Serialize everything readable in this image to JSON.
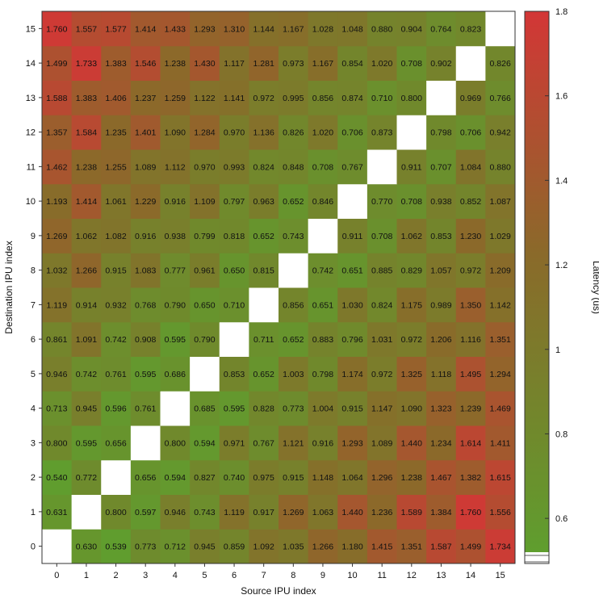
{
  "chart_data": {
    "type": "heatmap",
    "xlabel": "Source IPU index",
    "ylabel": "Destination IPU index",
    "x": [
      0,
      1,
      2,
      3,
      4,
      5,
      6,
      7,
      8,
      9,
      10,
      11,
      12,
      13,
      14,
      15
    ],
    "y": [
      0,
      1,
      2,
      3,
      4,
      5,
      6,
      7,
      8,
      9,
      10,
      11,
      12,
      13,
      14,
      15
    ],
    "colorbar": {
      "label": "Latency (us)",
      "range": [
        0.52,
        1.8
      ],
      "ticks": [
        "0.6",
        "0.8",
        "1",
        "1.2",
        "1.4",
        "1.6",
        "1.8"
      ],
      "tick_values": [
        0.6,
        0.8,
        1.0,
        1.2,
        1.4,
        1.6,
        1.8
      ],
      "low_color": "#5f9e2e",
      "mid_color": "#8a6a2a",
      "high_color": "#d33636",
      "diagonal_color": "#ffffff"
    },
    "values": [
      [
        null,
        "0.630",
        "0.539",
        "0.773",
        "0.712",
        "0.945",
        "0.859",
        "1.092",
        "1.035",
        "1.266",
        "1.180",
        "1.415",
        "1.351",
        "1.587",
        "1.499",
        "1.734"
      ],
      [
        "0.631",
        null,
        "0.800",
        "0.597",
        "0.946",
        "0.743",
        "1.119",
        "0.917",
        "1.269",
        "1.063",
        "1.440",
        "1.236",
        "1.589",
        "1.384",
        "1.760",
        "1.556"
      ],
      [
        "0.540",
        "0.772",
        null,
        "0.656",
        "0.594",
        "0.827",
        "0.740",
        "0.975",
        "0.915",
        "1.148",
        "1.064",
        "1.296",
        "1.238",
        "1.467",
        "1.382",
        "1.615"
      ],
      [
        "0.800",
        "0.595",
        "0.656",
        null,
        "0.800",
        "0.594",
        "0.971",
        "0.767",
        "1.121",
        "0.916",
        "1.293",
        "1.089",
        "1.440",
        "1.234",
        "1.614",
        "1.411"
      ],
      [
        "0.713",
        "0.945",
        "0.596",
        "0.761",
        null,
        "0.685",
        "0.595",
        "0.828",
        "0.773",
        "1.004",
        "0.915",
        "1.147",
        "1.090",
        "1.323",
        "1.239",
        "1.469"
      ],
      [
        "0.946",
        "0.742",
        "0.761",
        "0.595",
        "0.686",
        null,
        "0.853",
        "0.652",
        "1.003",
        "0.798",
        "1.174",
        "0.972",
        "1.325",
        "1.118",
        "1.495",
        "1.294"
      ],
      [
        "0.861",
        "1.091",
        "0.742",
        "0.908",
        "0.595",
        "0.790",
        null,
        "0.711",
        "0.652",
        "0.883",
        "0.796",
        "1.031",
        "0.972",
        "1.206",
        "1.116",
        "1.351"
      ],
      [
        "1.119",
        "0.914",
        "0.932",
        "0.768",
        "0.790",
        "0.650",
        "0.710",
        null,
        "0.856",
        "0.651",
        "1.030",
        "0.824",
        "1.175",
        "0.989",
        "1.350",
        "1.142"
      ],
      [
        "1.032",
        "1.266",
        "0.915",
        "1.083",
        "0.777",
        "0.961",
        "0.650",
        "0.815",
        null,
        "0.742",
        "0.651",
        "0.885",
        "0.829",
        "1.057",
        "0.972",
        "1.209"
      ],
      [
        "1.269",
        "1.062",
        "1.082",
        "0.916",
        "0.938",
        "0.799",
        "0.818",
        "0.652",
        "0.743",
        null,
        "0.911",
        "0.708",
        "1.062",
        "0.853",
        "1.230",
        "1.029"
      ],
      [
        "1.193",
        "1.414",
        "1.061",
        "1.229",
        "0.916",
        "1.109",
        "0.797",
        "0.963",
        "0.652",
        "0.846",
        null,
        "0.770",
        "0.708",
        "0.938",
        "0.852",
        "1.087"
      ],
      [
        "1.462",
        "1.238",
        "1.255",
        "1.089",
        "1.112",
        "0.970",
        "0.993",
        "0.824",
        "0.848",
        "0.708",
        "0.767",
        null,
        "0.911",
        "0.707",
        "1.084",
        "0.880"
      ],
      [
        "1.357",
        "1.584",
        "1.235",
        "1.401",
        "1.090",
        "1.284",
        "0.970",
        "1.136",
        "0.826",
        "1.020",
        "0.706",
        "0.873",
        null,
        "0.798",
        "0.706",
        "0.942"
      ],
      [
        "1.588",
        "1.383",
        "1.406",
        "1.237",
        "1.259",
        "1.122",
        "1.141",
        "0.972",
        "0.995",
        "0.856",
        "0.874",
        "0.710",
        "0.800",
        null,
        "0.969",
        "0.766"
      ],
      [
        "1.499",
        "1.733",
        "1.383",
        "1.546",
        "1.238",
        "1.430",
        "1.117",
        "1.281",
        "0.973",
        "1.167",
        "0.854",
        "1.020",
        "0.708",
        "0.902",
        null,
        "0.826"
      ],
      [
        "1.760",
        "1.557",
        "1.577",
        "1.414",
        "1.433",
        "1.293",
        "1.310",
        "1.144",
        "1.167",
        "1.028",
        "1.048",
        "0.880",
        "0.904",
        "0.764",
        "0.823",
        null
      ]
    ]
  }
}
